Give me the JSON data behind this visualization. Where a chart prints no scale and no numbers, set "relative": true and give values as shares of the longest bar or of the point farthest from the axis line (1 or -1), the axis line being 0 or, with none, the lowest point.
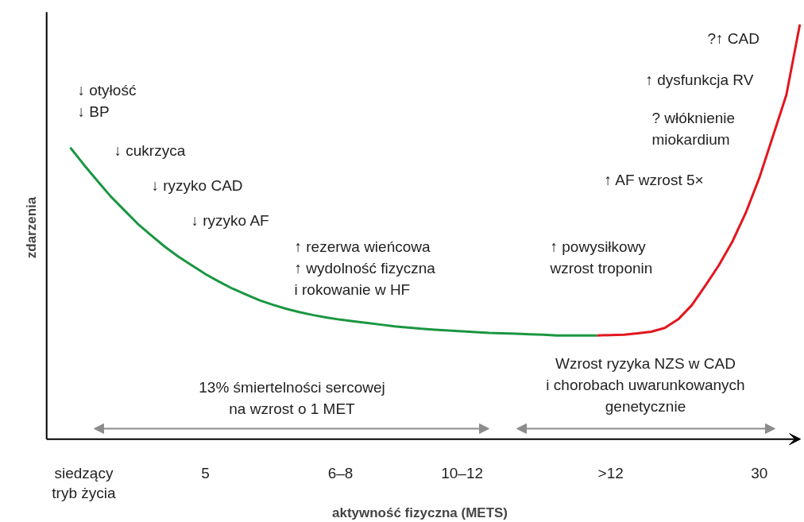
{
  "chart_data": {
    "type": "line",
    "relative": true,
    "xlabel": "aktywność fizyczna (METS)",
    "ylabel": "zdarzenia",
    "categories": [
      null,
      "siedzący\ntryb życia",
      null,
      null,
      null,
      null,
      null,
      null,
      null,
      null,
      "5",
      null,
      null,
      null,
      null,
      null,
      null,
      null,
      null,
      null,
      "6–8",
      null,
      null,
      null,
      null,
      null,
      null,
      null,
      null,
      "10–12",
      null,
      null,
      null,
      null,
      null,
      null,
      null,
      null,
      null,
      null,
      ">12",
      null,
      null,
      null,
      null,
      null,
      null,
      null,
      null,
      null,
      null,
      "30",
      null,
      null,
      null
    ],
    "series": [
      {
        "color": "#1a9641",
        "values": [
          0.703,
          0.662,
          0.623,
          0.585,
          0.552,
          0.519,
          0.491,
          0.464,
          0.44,
          0.419,
          0.398,
          0.38,
          0.363,
          0.349,
          0.335,
          0.324,
          0.314,
          0.306,
          0.299,
          0.293,
          0.288,
          0.284,
          0.28,
          0.276,
          0.272,
          0.269,
          0.266,
          0.264,
          0.262,
          0.26,
          0.258,
          0.256,
          0.255,
          0.254,
          0.253,
          0.252,
          0.25,
          0.25,
          0.25,
          0.25,
          null,
          null,
          null,
          null,
          null,
          null,
          null,
          null,
          null,
          null,
          null,
          null,
          null,
          null,
          null
        ]
      },
      {
        "color": "#e3161e",
        "values": [
          null,
          null,
          null,
          null,
          null,
          null,
          null,
          null,
          null,
          null,
          null,
          null,
          null,
          null,
          null,
          null,
          null,
          null,
          null,
          null,
          null,
          null,
          null,
          null,
          null,
          null,
          null,
          null,
          null,
          null,
          null,
          null,
          null,
          null,
          null,
          null,
          null,
          null,
          null,
          0.25,
          0.251,
          0.252,
          0.255,
          0.259,
          0.268,
          0.289,
          0.323,
          0.37,
          0.419,
          0.476,
          0.546,
          0.63,
          0.73,
          0.83,
          1.0
        ]
      }
    ],
    "annotations": [
      "↓ otyłość\n↓ BP",
      "↓ cukrzyca",
      "↓ ryzyko CAD",
      "↓ ryzyko AF",
      "↑ rezerwa wieńcowa\n↑ wydolność fizyczna\n    i rokowanie w HF",
      "↑ powysiłkowy\n    wzrost troponin",
      "↑ AF wzrost 5×",
      "? włóknienie\n    miokardium",
      "↑ dysfunkcja RV",
      "?↑ CAD",
      "13% śmiertelności sercowej\nna wzrost o 1 MET",
      "Wzrost ryzyka NZS w CAD\ni chorobach uwarunkowanych\ngenetycznie"
    ],
    "grid": false,
    "line_style": "solid"
  }
}
